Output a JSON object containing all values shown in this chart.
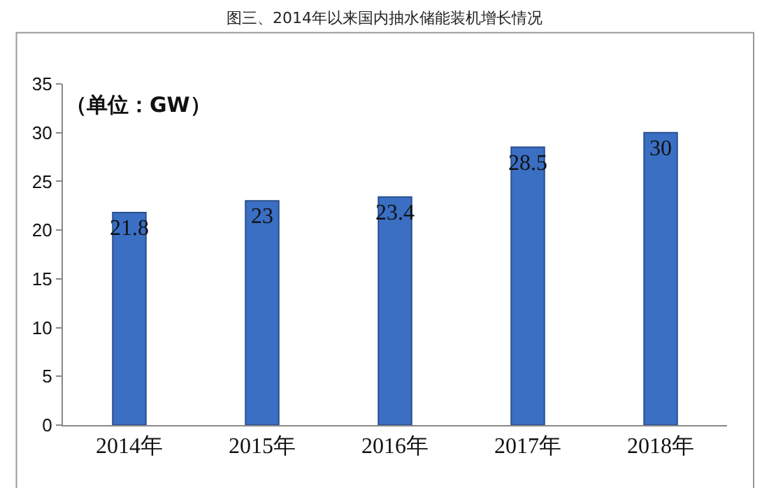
{
  "chart_data": {
    "type": "bar",
    "title": "图三、2014年以来国内抽水储能装机增长情况",
    "categories": [
      "2014年",
      "2015年",
      "2016年",
      "2017年",
      "2018年"
    ],
    "values": [
      21.8,
      23,
      23.4,
      28.5,
      30
    ],
    "color": "#3a6fc4",
    "ylim": [
      0,
      35
    ],
    "yticks": [
      0,
      5,
      10,
      15,
      20,
      25,
      30,
      35
    ],
    "data_labels": true,
    "annotations": [
      "（单位：GW）"
    ]
  }
}
